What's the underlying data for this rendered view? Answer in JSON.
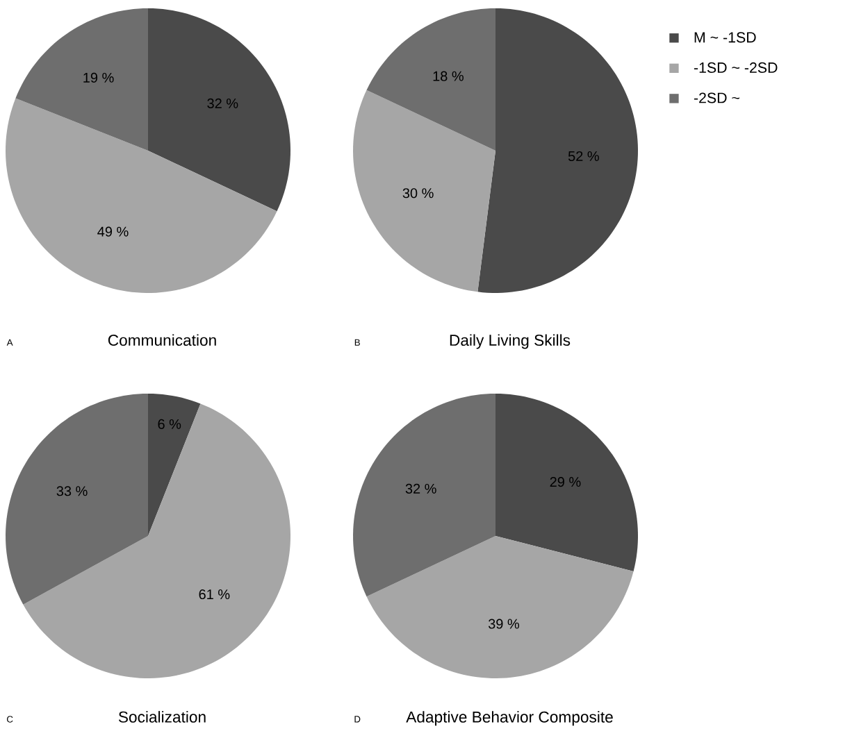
{
  "chart_data": [
    {
      "type": "pie",
      "title": "Communication",
      "annotations": [
        "A"
      ],
      "categories": [
        null,
        null,
        null
      ],
      "values": [
        32,
        49,
        19
      ],
      "colors": [
        "#4a4a4a",
        "#a6a6a6",
        "#6e6e6e"
      ],
      "value_labels": [
        "32 %",
        "49 %",
        "19 %"
      ]
    },
    {
      "type": "pie",
      "title": "Daily Living Skills",
      "annotations": [
        "B"
      ],
      "categories": [
        "M ~ -1SD",
        "-1SD ~ -2SD",
        "-2SD ~"
      ],
      "values": [
        52,
        30,
        18
      ],
      "colors": [
        "#4a4a4a",
        "#a6a6a6",
        "#6e6e6e"
      ],
      "value_labels": [
        "52 %",
        "30 %",
        "18 %"
      ],
      "legend": "right"
    },
    {
      "type": "pie",
      "title": "Socialization",
      "annotations": [
        "C"
      ],
      "categories": [
        null,
        null,
        null
      ],
      "values": [
        6,
        61,
        33
      ],
      "colors": [
        "#4a4a4a",
        "#a6a6a6",
        "#6e6e6e"
      ],
      "value_labels": [
        "6 %",
        "61 %",
        "33 %"
      ]
    },
    {
      "type": "pie",
      "title": "Adaptive Behavior Composite",
      "annotations": [
        "D"
      ],
      "categories": [
        null,
        null,
        null
      ],
      "values": [
        29,
        39,
        32
      ],
      "colors": [
        "#4a4a4a",
        "#a6a6a6",
        "#6e6e6e"
      ],
      "value_labels": [
        "29 %",
        "39 %",
        "32 %"
      ]
    }
  ]
}
